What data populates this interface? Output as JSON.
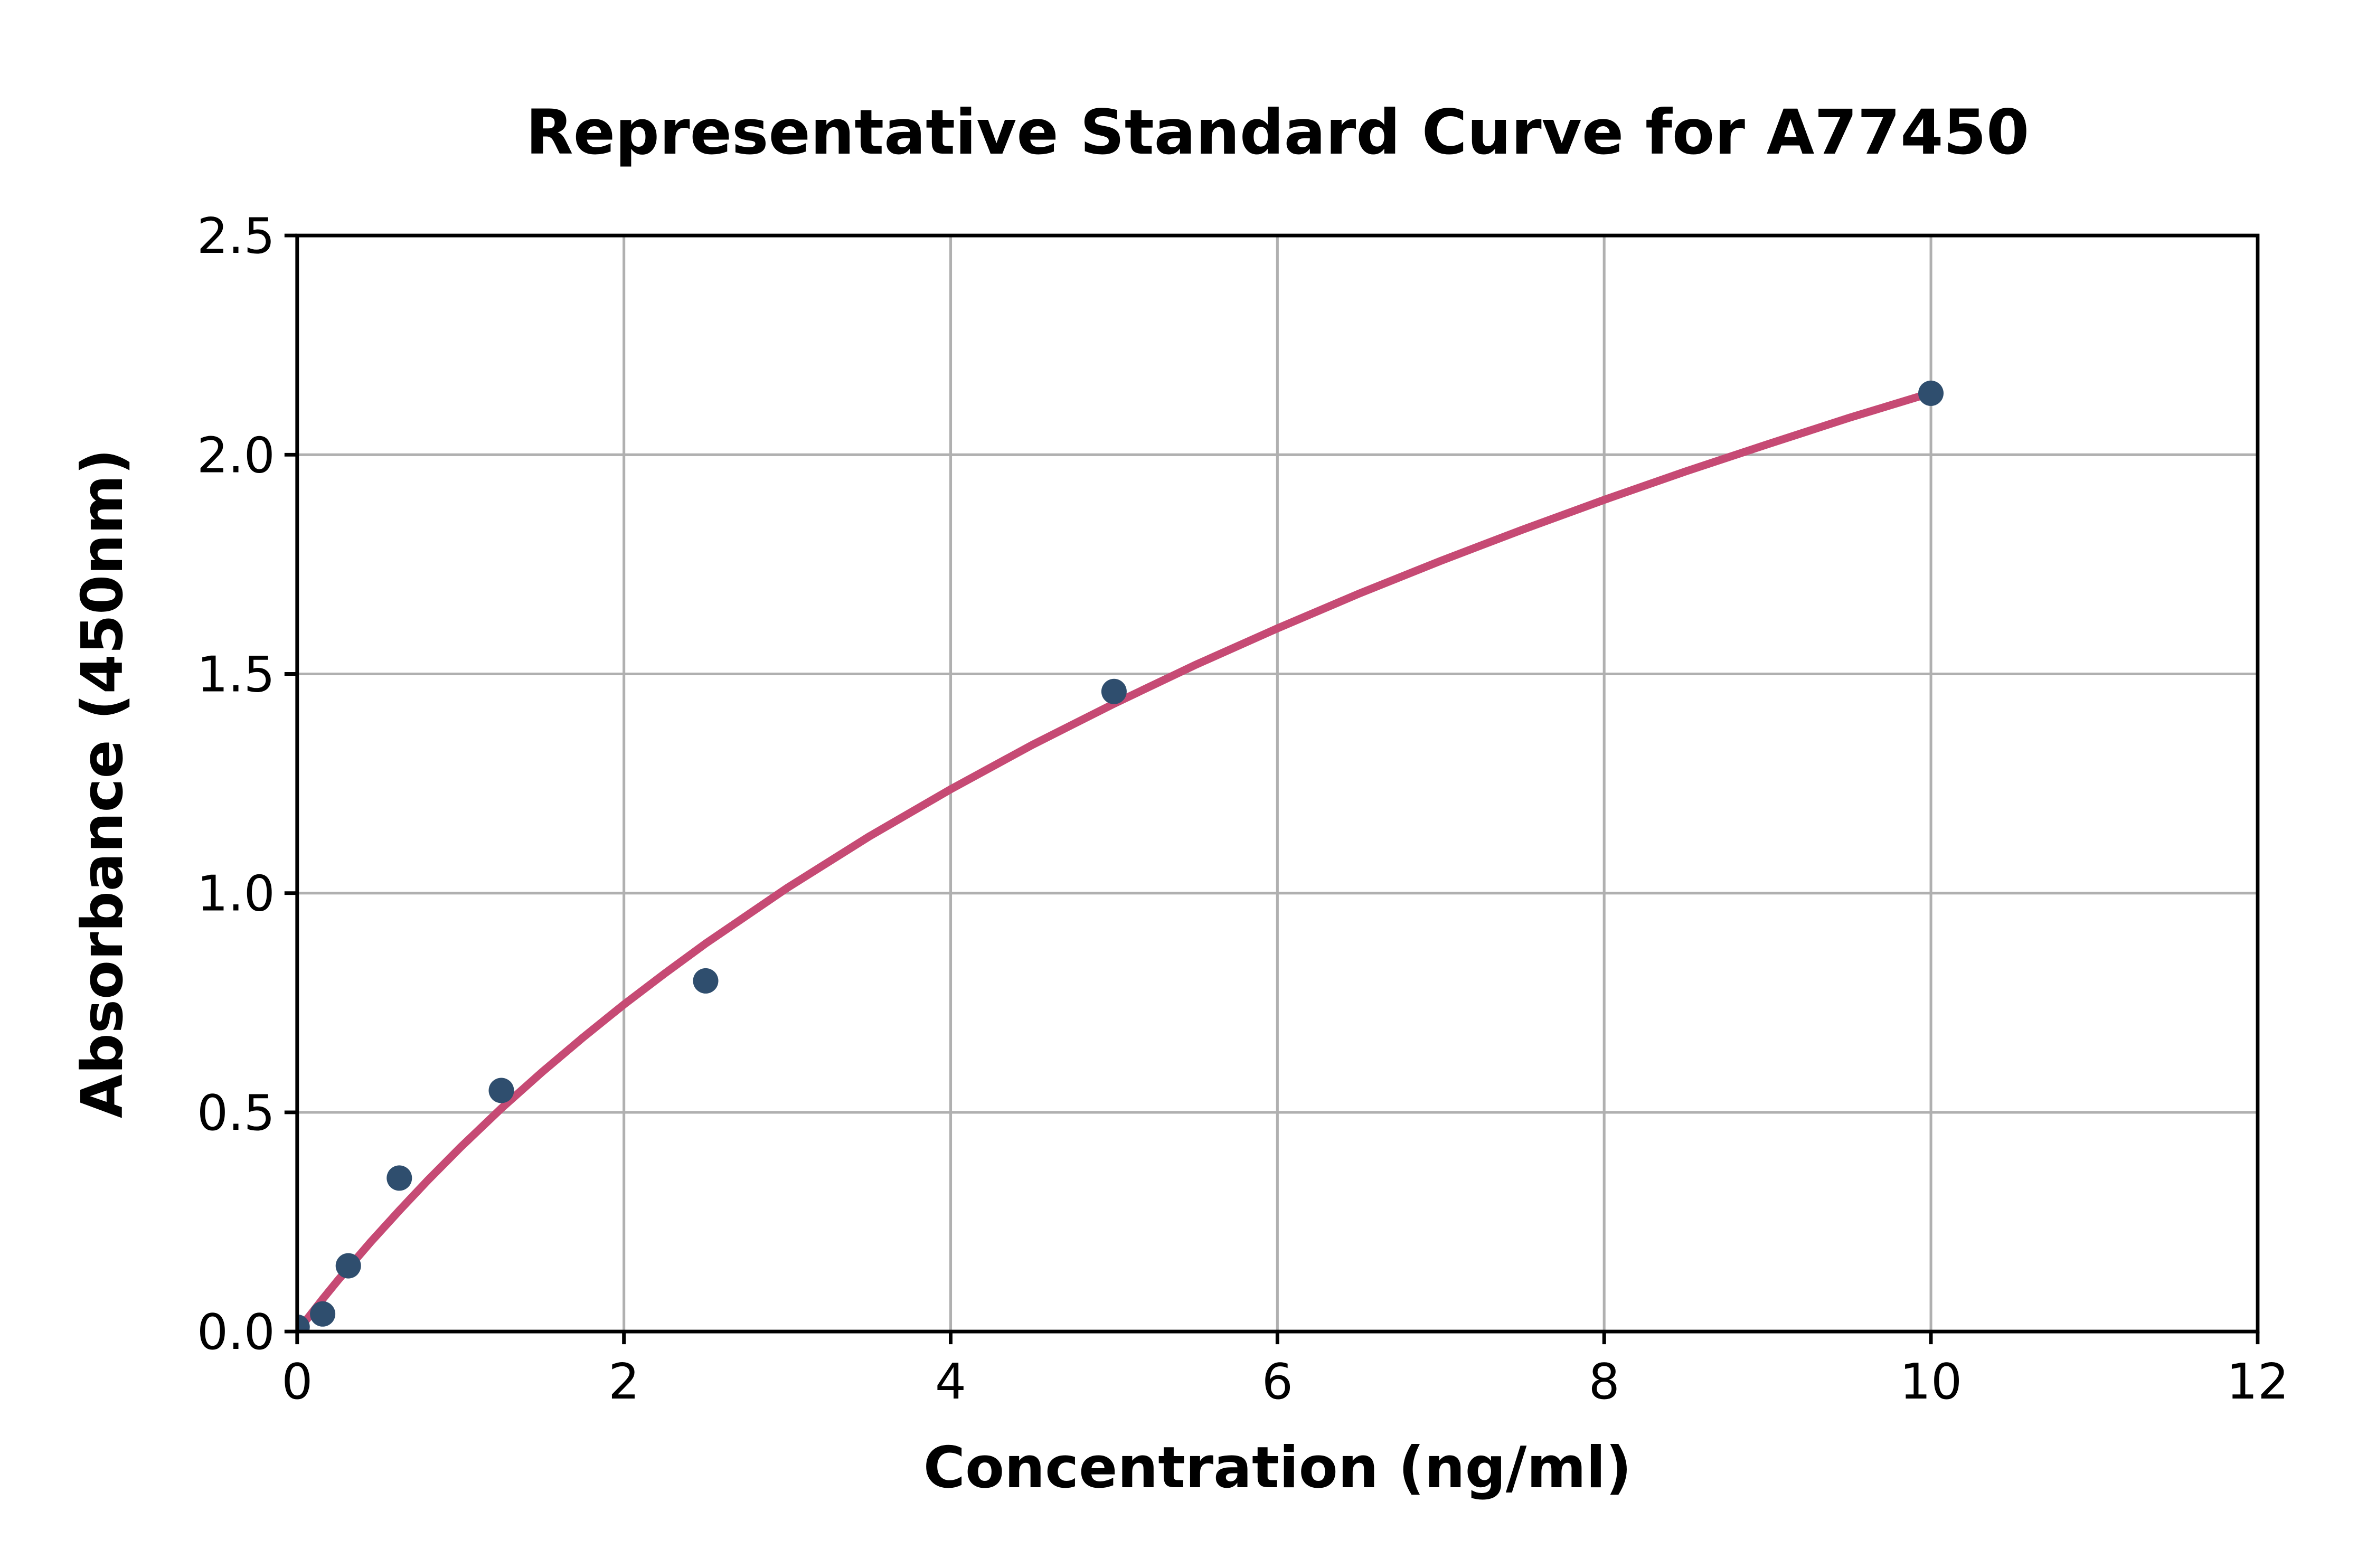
{
  "chart_data": {
    "type": "scatter",
    "title": "Representative Standard Curve for A77450",
    "xlabel": "Concentration (ng/ml)",
    "ylabel": "Absorbance (450nm)",
    "xlim": [
      0,
      12
    ],
    "ylim": [
      0,
      2.5
    ],
    "x_ticks": [
      0,
      2,
      4,
      6,
      8,
      10,
      12
    ],
    "x_tick_labels": [
      "0",
      "2",
      "4",
      "6",
      "8",
      "10",
      "12"
    ],
    "y_ticks": [
      0.0,
      0.5,
      1.0,
      1.5,
      2.0,
      2.5
    ],
    "y_tick_labels": [
      "0.0",
      "0.5",
      "1.0",
      "1.5",
      "2.0",
      "2.5"
    ],
    "grid": true,
    "legend": "none",
    "points": {
      "x": [
        0,
        0.156,
        0.313,
        0.625,
        1.25,
        2.5,
        5,
        10
      ],
      "y": [
        0.01,
        0.04,
        0.15,
        0.35,
        0.55,
        0.8,
        1.46,
        2.14
      ]
    },
    "fit_curve": {
      "x": [
        0,
        0.08,
        0.156,
        0.25,
        0.313,
        0.45,
        0.625,
        0.8,
        1.0,
        1.25,
        1.5,
        1.75,
        2.0,
        2.25,
        2.5,
        3.0,
        3.5,
        4.0,
        4.5,
        5.0,
        5.5,
        6.0,
        6.5,
        7.0,
        7.5,
        8.0,
        8.5,
        9.0,
        9.5,
        10.0
      ],
      "y": [
        0.0,
        0.038,
        0.074,
        0.117,
        0.145,
        0.204,
        0.276,
        0.345,
        0.42,
        0.509,
        0.592,
        0.671,
        0.746,
        0.817,
        0.885,
        1.012,
        1.129,
        1.237,
        1.338,
        1.432,
        1.521,
        1.604,
        1.683,
        1.758,
        1.829,
        1.897,
        1.962,
        2.024,
        2.084,
        2.141
      ]
    },
    "colors": {
      "marker": "#2F4E6E",
      "curve": "#C64A74",
      "grid": "#B0B0B0",
      "spine": "#000000",
      "background": "#FFFFFF"
    }
  }
}
